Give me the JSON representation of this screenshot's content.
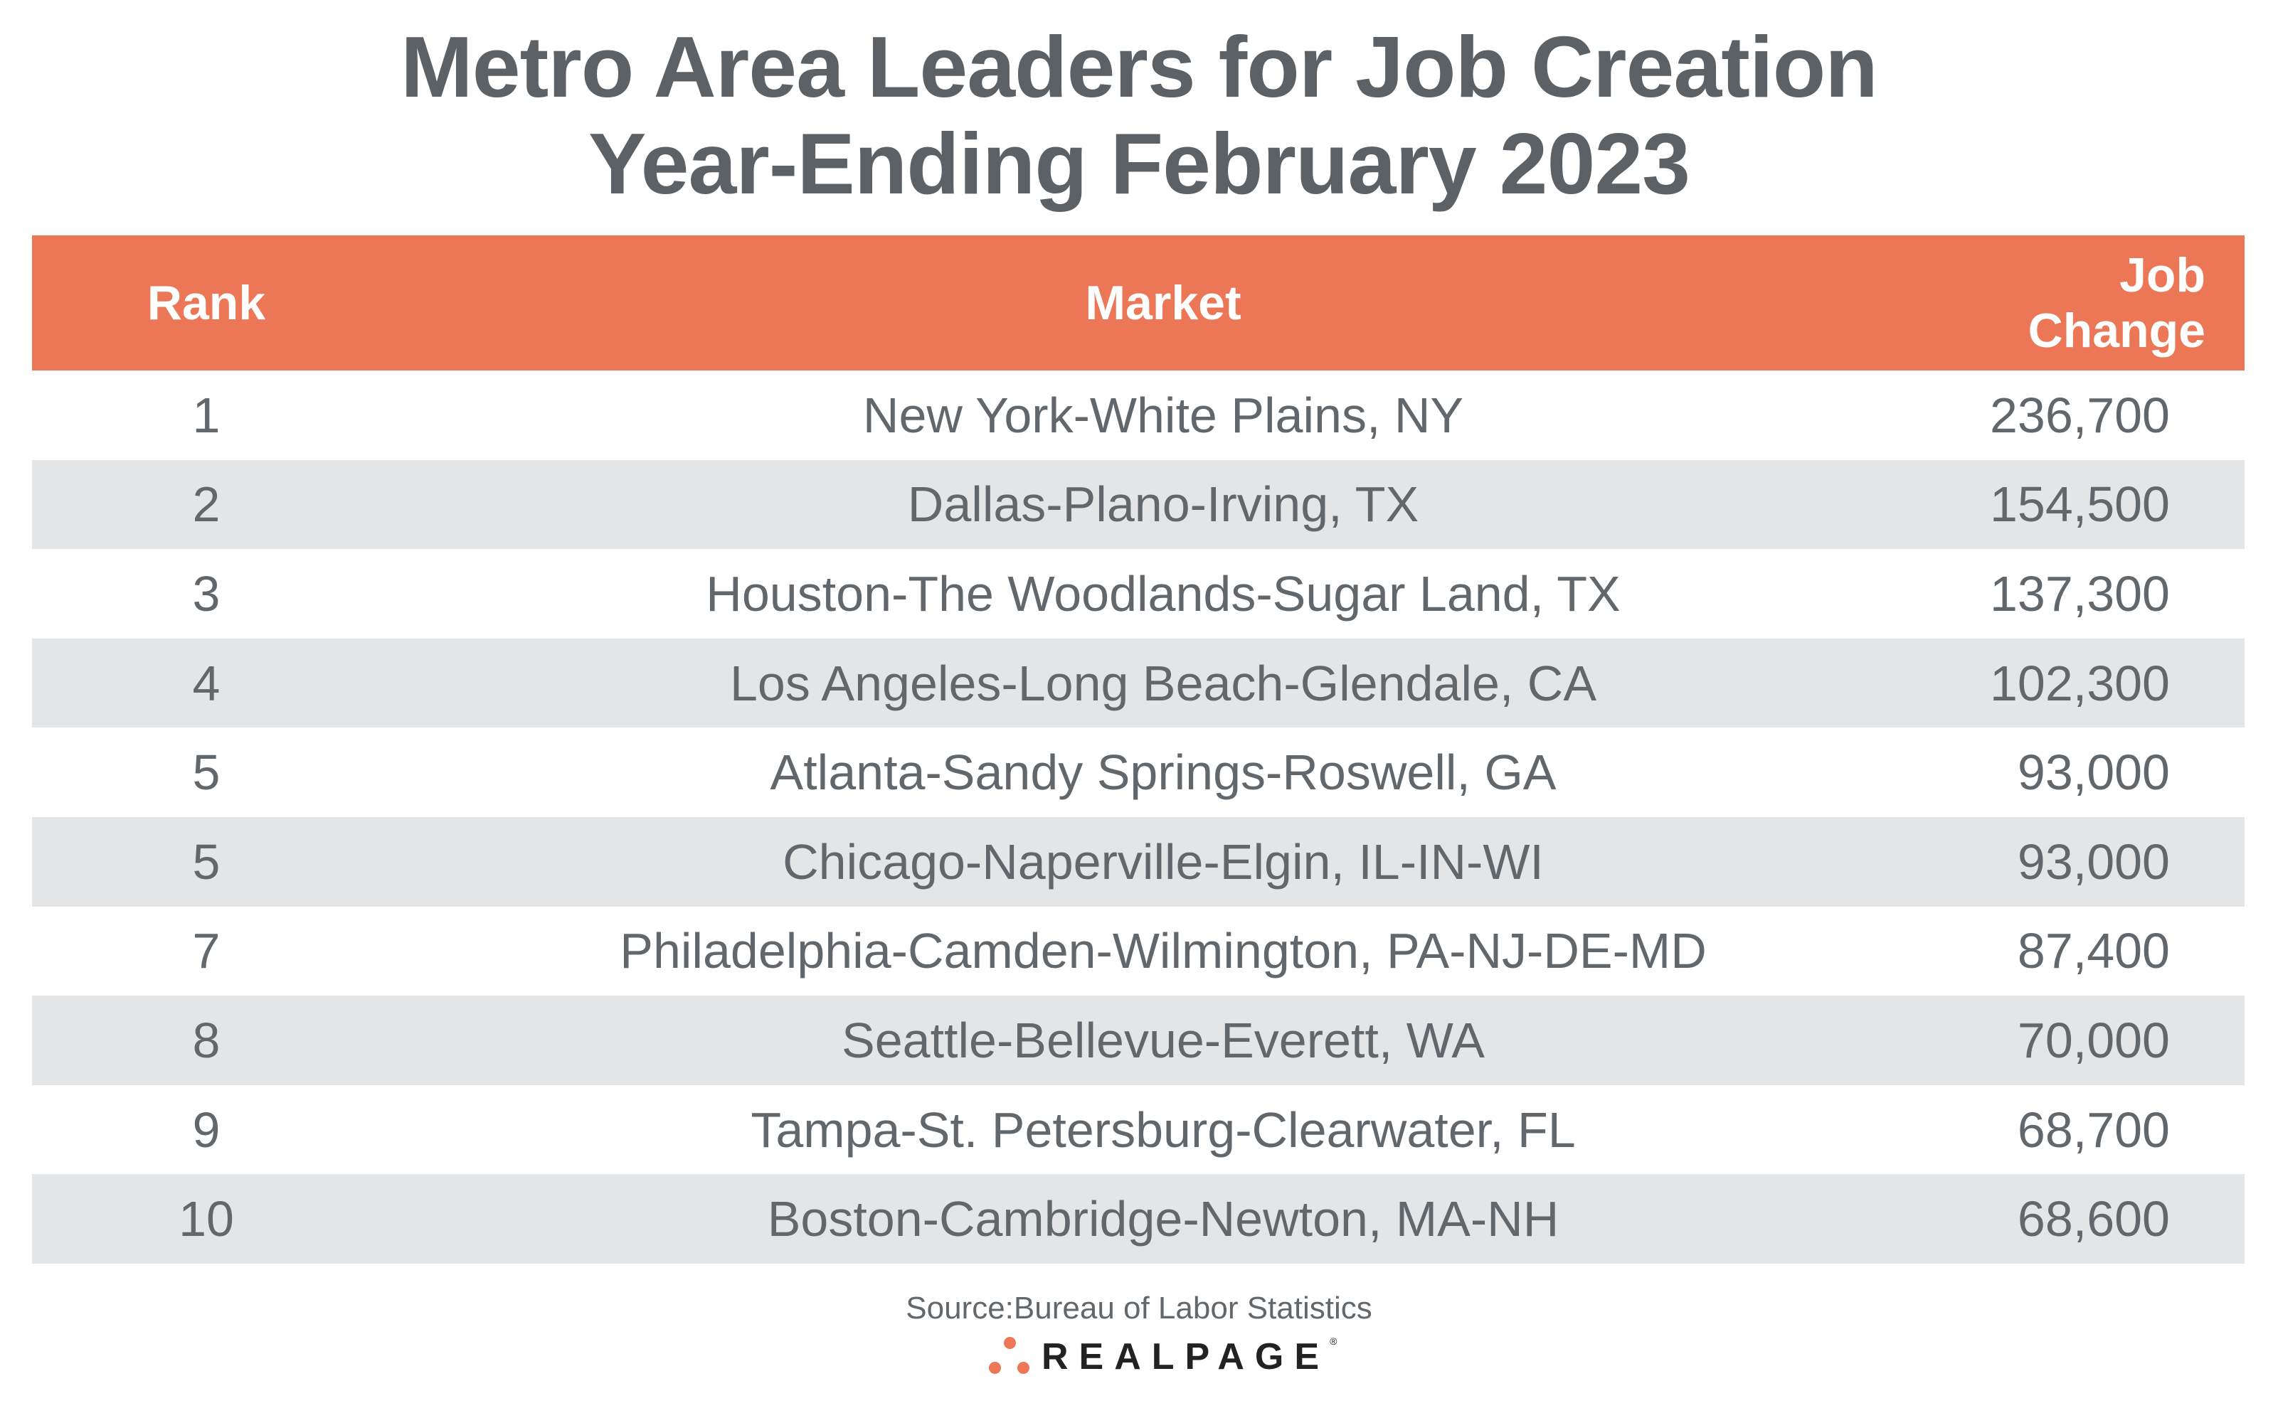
{
  "title": {
    "line1": "Metro Area Leaders for Job Creation",
    "line2": "Year-Ending February 2023"
  },
  "table": {
    "headers": [
      "Rank",
      "Market",
      "Job Change"
    ],
    "rows": [
      [
        "1",
        "New York-White Plains, NY",
        "236,700"
      ],
      [
        "2",
        "Dallas-Plano-Irving, TX",
        "154,500"
      ],
      [
        "3",
        "Houston-The Woodlands-Sugar Land, TX",
        "137,300"
      ],
      [
        "4",
        "Los Angeles-Long Beach-Glendale, CA",
        "102,300"
      ],
      [
        "5",
        "Atlanta-Sandy Springs-Roswell, GA",
        "93,000"
      ],
      [
        "5",
        "Chicago-Naperville-Elgin, IL-IN-WI",
        "93,000"
      ],
      [
        "7",
        "Philadelphia-Camden-Wilmington, PA-NJ-DE-MD",
        "87,400"
      ],
      [
        "8",
        "Seattle-Bellevue-Everett, WA",
        "70,000"
      ],
      [
        "9",
        "Tampa-St. Petersburg-Clearwater, FL",
        "68,700"
      ],
      [
        "10",
        "Boston-Cambridge-Newton, MA-NH",
        "68,600"
      ]
    ]
  },
  "source": "Source:Bureau of Labor Statistics",
  "logo": {
    "text": "REALPAGE",
    "mark": "®"
  },
  "colors": {
    "header": "#EC7757",
    "stripe": "#E4E5E7",
    "text": "#5f6469"
  }
}
